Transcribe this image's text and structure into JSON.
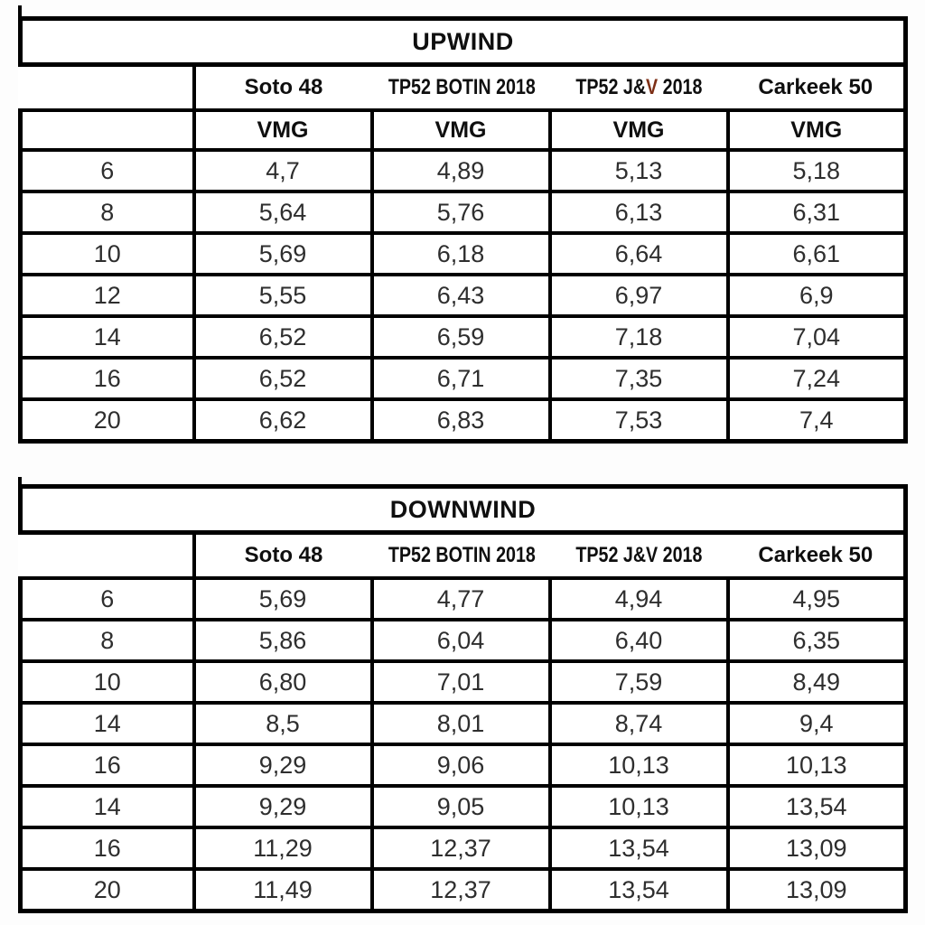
{
  "colors": {
    "border": "#000000",
    "header_text": "#0f0f0f",
    "data_text": "#2e2e2e",
    "cell_background": "#ffffff",
    "page_background": "#fdfdfd",
    "jv_mark": "#7d2f16"
  },
  "decor": {
    "upwind_jv_marked_column_index": 2,
    "upwind_jv_marked_char": "V"
  },
  "chart_data": [
    {
      "type": "table",
      "title": "UPWIND",
      "row_header_label": "",
      "columns": [
        "Soto 48",
        "TP52 BOTIN 2018",
        "TP52 J&V 2018",
        "Carkeek 50"
      ],
      "subheader": [
        "VMG",
        "VMG",
        "VMG",
        "VMG"
      ],
      "rows": [
        {
          "tws": "6",
          "values": [
            "4,7",
            "4,89",
            "5,13",
            "5,18"
          ]
        },
        {
          "tws": "8",
          "values": [
            "5,64",
            "5,76",
            "6,13",
            "6,31"
          ]
        },
        {
          "tws": "10",
          "values": [
            "5,69",
            "6,18",
            "6,64",
            "6,61"
          ]
        },
        {
          "tws": "12",
          "values": [
            "5,55",
            "6,43",
            "6,97",
            "6,9"
          ]
        },
        {
          "tws": "14",
          "values": [
            "6,52",
            "6,59",
            "7,18",
            "7,04"
          ]
        },
        {
          "tws": "16",
          "values": [
            "6,52",
            "6,71",
            "7,35",
            "7,24"
          ]
        },
        {
          "tws": "20",
          "values": [
            "6,62",
            "6,83",
            "7,53",
            "7,4"
          ]
        }
      ]
    },
    {
      "type": "table",
      "title": "DOWNWIND",
      "row_header_label": "",
      "columns": [
        "Soto 48",
        "TP52 BOTIN 2018",
        "TP52 J&V 2018",
        "Carkeek 50"
      ],
      "rows": [
        {
          "tws": "6",
          "values": [
            "5,69",
            "4,77",
            "4,94",
            "4,95"
          ]
        },
        {
          "tws": "8",
          "values": [
            "5,86",
            "6,04",
            "6,40",
            "6,35"
          ]
        },
        {
          "tws": "10",
          "values": [
            "6,80",
            "7,01",
            "7,59",
            "8,49"
          ]
        },
        {
          "tws": "14",
          "values": [
            "8,5",
            "8,01",
            "8,74",
            "9,4"
          ]
        },
        {
          "tws": "16",
          "values": [
            "9,29",
            "9,06",
            "10,13",
            "10,13"
          ]
        },
        {
          "tws": "14",
          "values": [
            "9,29",
            "9,05",
            "10,13",
            "13,54"
          ]
        },
        {
          "tws": "16",
          "values": [
            "11,29",
            "12,37",
            "13,54",
            "13,09"
          ]
        },
        {
          "tws": "20",
          "values": [
            "11,49",
            "12,37",
            "13,54",
            "13,09"
          ]
        }
      ]
    }
  ]
}
